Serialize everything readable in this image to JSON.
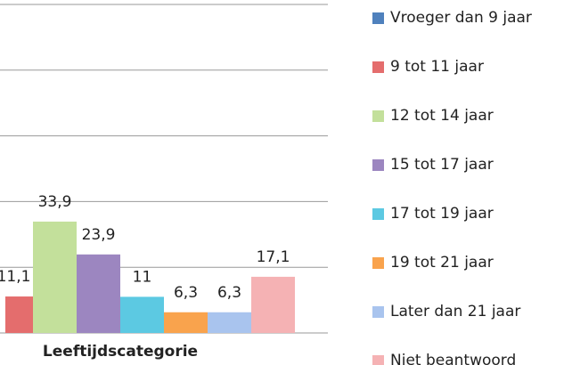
{
  "chart_data": {
    "type": "bar",
    "categories": [
      "Leeftijdscategorie"
    ],
    "series": [
      {
        "name": "Vroeger dan 9 jaar",
        "color": "#4f81bd",
        "values": [
          null
        ]
      },
      {
        "name": "9 tot 11 jaar",
        "color": "#e46d6d",
        "values": [
          11.1
        ],
        "value_labels": [
          "11,1"
        ]
      },
      {
        "name": "12 tot 14 jaar",
        "color": "#c3e09b",
        "values": [
          33.9
        ],
        "value_labels": [
          "33,9"
        ]
      },
      {
        "name": "15 tot 17 jaar",
        "color": "#9c86c0",
        "values": [
          23.9
        ],
        "value_labels": [
          "23,9"
        ]
      },
      {
        "name": "17 tot 19 jaar",
        "color": "#5cc9e2",
        "values": [
          11
        ],
        "value_labels": [
          "11"
        ]
      },
      {
        "name": "19 tot 21 jaar",
        "color": "#f9a34d",
        "values": [
          6.3
        ],
        "value_labels": [
          "6,3"
        ]
      },
      {
        "name": "Later dan 21 jaar",
        "color": "#a9c4ee",
        "values": [
          6.3
        ],
        "value_labels": [
          "6,3"
        ]
      },
      {
        "name": "Niet beantwoord",
        "color": "#f5b2b4",
        "values": [
          17.1
        ],
        "value_labels": [
          "17,1"
        ]
      }
    ],
    "ylim": [
      0,
      100
    ],
    "yticks": [
      0,
      20,
      40,
      60,
      80,
      100
    ],
    "grid": true,
    "legend": "right"
  }
}
